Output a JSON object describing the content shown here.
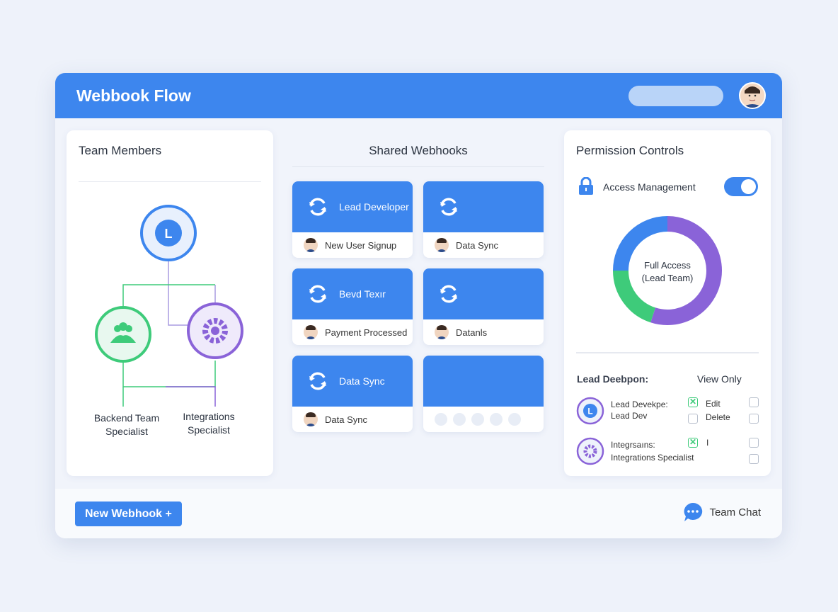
{
  "header": {
    "title": "Webbook Flow"
  },
  "team": {
    "title": "Team Members",
    "root_initial": "L",
    "members": [
      {
        "label": "Backend Team Specialist",
        "line1": "Backend Team",
        "line2": "Specialist"
      },
      {
        "label": "Integrations Specialist",
        "line1": "Integrations",
        "line2": "Specialist"
      }
    ]
  },
  "webhooks": {
    "title": "Shared Webhooks",
    "cards": [
      {
        "title": "Lead Developer",
        "sub": "New User Signup"
      },
      {
        "title": "",
        "sub": "Data Sync"
      },
      {
        "title": "Bevd Texır",
        "sub": "Payment Processed"
      },
      {
        "title": "",
        "sub": "Datanls"
      },
      {
        "title": "Data Sync",
        "sub": "Data Sync"
      },
      {
        "title": "",
        "sub": ""
      }
    ]
  },
  "permissions": {
    "title": "Permission Controls",
    "access_label": "Access Management",
    "toggle_on": true,
    "donut": {
      "label1": "Full Access",
      "label2": "(Lead Team)",
      "segments": [
        {
          "color": "#8a63d8",
          "value": 55
        },
        {
          "color": "#3ecb7a",
          "value": 20
        },
        {
          "color": "#3d86ee",
          "value": 25
        }
      ]
    },
    "section_label": "Lead Deebpon:",
    "view_only": "View Only",
    "rows": [
      {
        "initial": "L",
        "name": "Lead Devekpe:",
        "role": "Lead Dev",
        "perm1": "Edit",
        "perm1_checked": true,
        "perm2": "Delete",
        "perm2_checked": false
      },
      {
        "name": "Integrsaıns:",
        "role": "Integrations Specialist",
        "perm1": "I",
        "perm1_checked": true
      }
    ]
  },
  "footer": {
    "new_webhook": "New Webhook +",
    "team_chat": "Team Chat"
  },
  "colors": {
    "primary": "#3d86ee",
    "green": "#3ecb7a",
    "purple": "#8a63d8"
  }
}
